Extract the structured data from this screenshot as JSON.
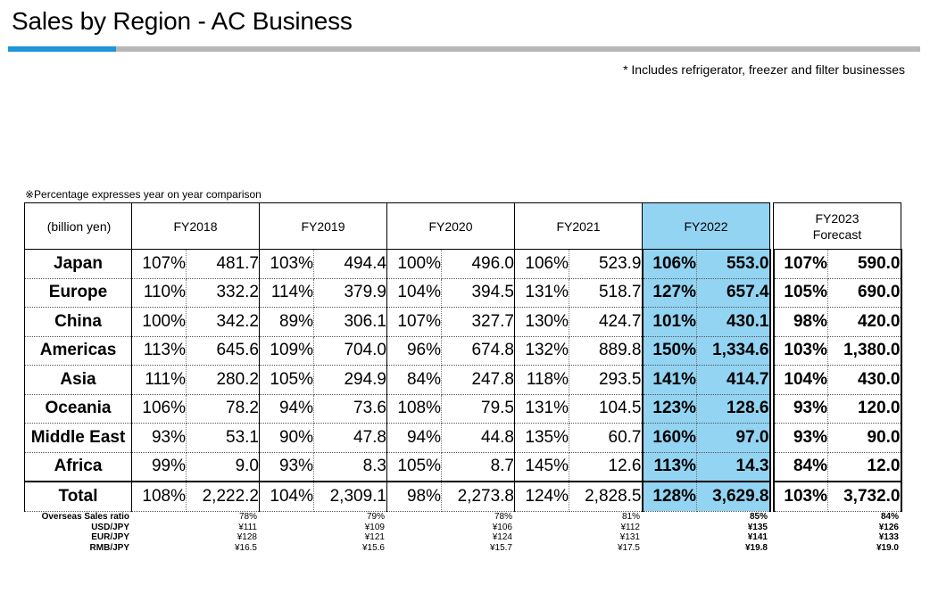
{
  "page": {
    "title": "Sales by Region - AC Business",
    "note": "* Includes refrigerator, freezer and filter businesses",
    "percentage_note": "※Percentage expresses year on year comparison",
    "unit_label": "(billion yen)"
  },
  "colors": {
    "accent_blue": "#1e96d8",
    "highlight": "#92d4f2",
    "rule_grey": "#b7b7b7"
  },
  "table": {
    "headers": [
      "FY2018",
      "FY2019",
      "FY2020",
      "FY2021",
      "FY2022",
      "FY2023\nForecast"
    ],
    "rows": [
      {
        "region": "Japan",
        "cells": [
          [
            "107%",
            "481.7"
          ],
          [
            "103%",
            "494.4"
          ],
          [
            "100%",
            "496.0"
          ],
          [
            "106%",
            "523.9"
          ],
          [
            "106%",
            "553.0"
          ],
          [
            "107%",
            "590.0"
          ]
        ]
      },
      {
        "region": "Europe",
        "cells": [
          [
            "110%",
            "332.2"
          ],
          [
            "114%",
            "379.9"
          ],
          [
            "104%",
            "394.5"
          ],
          [
            "131%",
            "518.7"
          ],
          [
            "127%",
            "657.4"
          ],
          [
            "105%",
            "690.0"
          ]
        ]
      },
      {
        "region": "China",
        "cells": [
          [
            "100%",
            "342.2"
          ],
          [
            "89%",
            "306.1"
          ],
          [
            "107%",
            "327.7"
          ],
          [
            "130%",
            "424.7"
          ],
          [
            "101%",
            "430.1"
          ],
          [
            "98%",
            "420.0"
          ]
        ]
      },
      {
        "region": "Americas",
        "cells": [
          [
            "113%",
            "645.6"
          ],
          [
            "109%",
            "704.0"
          ],
          [
            "96%",
            "674.8"
          ],
          [
            "132%",
            "889.8"
          ],
          [
            "150%",
            "1,334.6"
          ],
          [
            "103%",
            "1,380.0"
          ]
        ]
      },
      {
        "region": "Asia",
        "cells": [
          [
            "111%",
            "280.2"
          ],
          [
            "105%",
            "294.9"
          ],
          [
            "84%",
            "247.8"
          ],
          [
            "118%",
            "293.5"
          ],
          [
            "141%",
            "414.7"
          ],
          [
            "104%",
            "430.0"
          ]
        ]
      },
      {
        "region": "Oceania",
        "cells": [
          [
            "106%",
            "78.2"
          ],
          [
            "94%",
            "73.6"
          ],
          [
            "108%",
            "79.5"
          ],
          [
            "131%",
            "104.5"
          ],
          [
            "123%",
            "128.6"
          ],
          [
            "93%",
            "120.0"
          ]
        ]
      },
      {
        "region": "Middle East",
        "cells": [
          [
            "93%",
            "53.1"
          ],
          [
            "90%",
            "47.8"
          ],
          [
            "94%",
            "44.8"
          ],
          [
            "135%",
            "60.7"
          ],
          [
            "160%",
            "97.0"
          ],
          [
            "93%",
            "90.0"
          ]
        ]
      },
      {
        "region": "Africa",
        "cells": [
          [
            "99%",
            "9.0"
          ],
          [
            "93%",
            "8.3"
          ],
          [
            "105%",
            "8.7"
          ],
          [
            "145%",
            "12.6"
          ],
          [
            "113%",
            "14.3"
          ],
          [
            "84%",
            "12.0"
          ]
        ]
      }
    ],
    "total": {
      "region": "Total",
      "cells": [
        [
          "108%",
          "2,222.2"
        ],
        [
          "104%",
          "2,309.1"
        ],
        [
          "98%",
          "2,273.8"
        ],
        [
          "124%",
          "2,828.5"
        ],
        [
          "128%",
          "3,629.8"
        ],
        [
          "103%",
          "3,732.0"
        ]
      ]
    }
  },
  "footer": [
    {
      "label": "Overseas Sales ratio",
      "values": [
        "78%",
        "79%",
        "78%",
        "81%",
        "85%",
        "84%"
      ]
    },
    {
      "label": "USD/JPY",
      "values": [
        "¥111",
        "¥109",
        "¥106",
        "¥112",
        "¥135",
        "¥126"
      ]
    },
    {
      "label": "EUR/JPY",
      "values": [
        "¥128",
        "¥121",
        "¥124",
        "¥131",
        "¥141",
        "¥133"
      ]
    },
    {
      "label": "RMB/JPY",
      "values": [
        "¥16.5",
        "¥15.6",
        "¥15.7",
        "¥17.5",
        "¥19.8",
        "¥19.0"
      ]
    }
  ]
}
